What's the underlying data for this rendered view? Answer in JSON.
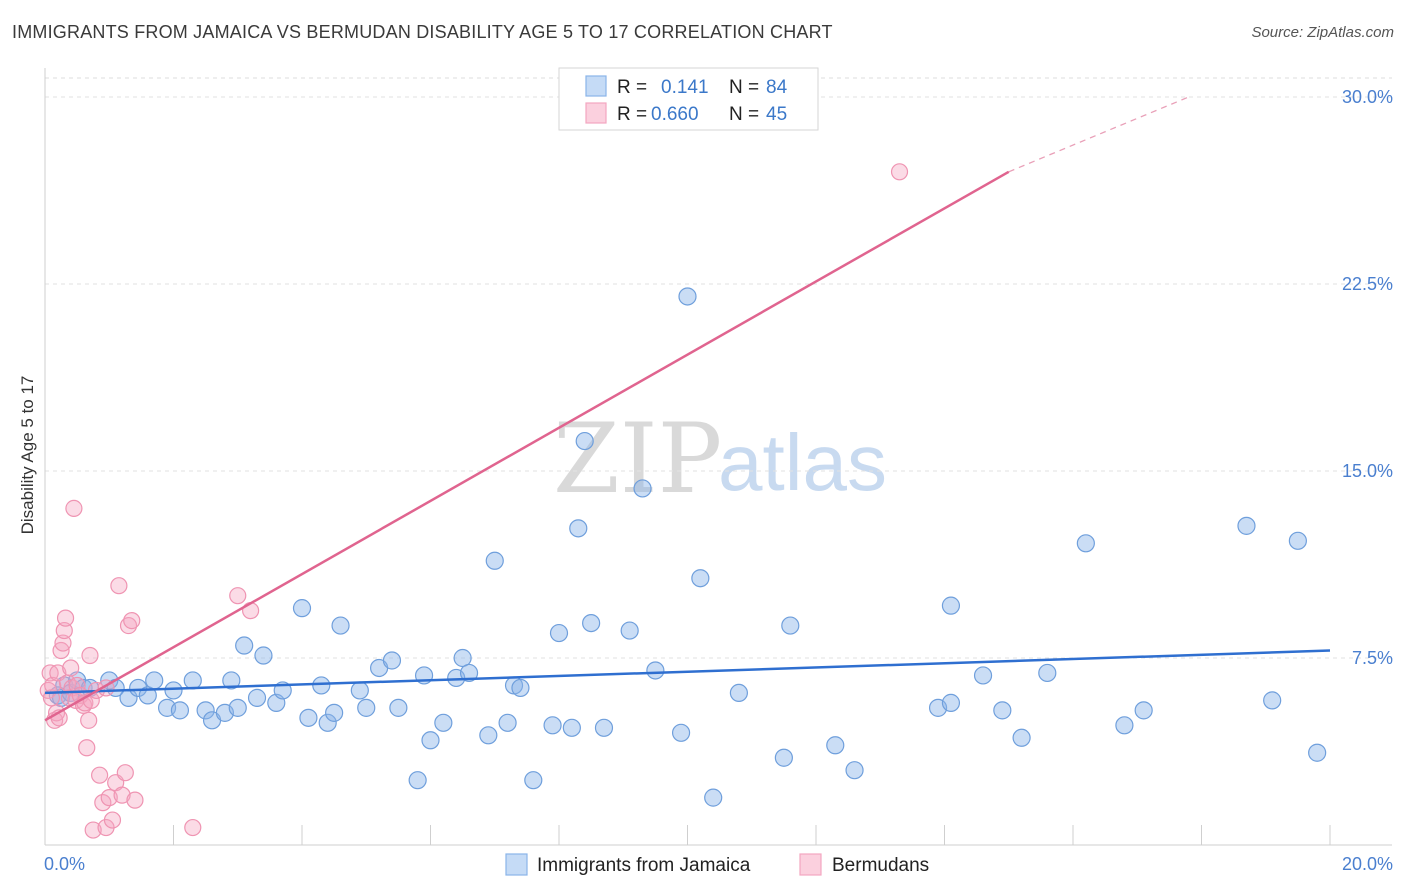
{
  "title": "IMMIGRANTS FROM JAMAICA VS BERMUDAN DISABILITY AGE 5 TO 17 CORRELATION CHART",
  "source": "Source: ZipAtlas.com",
  "watermark": {
    "zip": "ZIP",
    "atlas": "atlas"
  },
  "legend": {
    "rows": [
      {
        "r_label": "R =",
        "r_value": "0.141",
        "n_label": "N =",
        "n_value": "84"
      },
      {
        "r_label": "R =",
        "r_value": "0.660",
        "n_label": "N =",
        "n_value": "45"
      }
    ]
  },
  "bottom_legend": [
    "Immigrants from Jamaica",
    "Bermudans"
  ],
  "chart_data": {
    "type": "scatter",
    "title": "IMMIGRANTS FROM JAMAICA VS BERMUDAN DISABILITY AGE 5 TO 17 CORRELATION CHART",
    "xlabel": "",
    "ylabel": "Disability Age 5 to 17",
    "xlim": [
      0,
      20
    ],
    "ylim": [
      0,
      30
    ],
    "x_tick_labels": [
      "0.0%",
      "20.0%"
    ],
    "y_ticks": [
      7.5,
      15.0,
      22.5,
      30.0
    ],
    "y_tick_labels": [
      "7.5%",
      "15.0%",
      "22.5%",
      "30.0%"
    ],
    "grid": true,
    "legend_position": "top-center",
    "colors": {
      "jamaica": "#8ab4e8",
      "jamaica_line": "#2f6fd0",
      "bermuda": "#f4a6c0",
      "bermuda_line": "#e0648f"
    },
    "series": [
      {
        "name": "Immigrants from Jamaica",
        "color": "#8ab4e8",
        "trend": {
          "x": [
            0.0,
            20.0
          ],
          "y": [
            6.1,
            7.8
          ]
        },
        "points": [
          [
            0.2,
            6.0
          ],
          [
            0.25,
            5.9
          ],
          [
            0.3,
            6.4
          ],
          [
            0.4,
            6.1
          ],
          [
            0.5,
            6.6
          ],
          [
            0.6,
            6.3
          ],
          [
            0.7,
            6.3
          ],
          [
            1.0,
            6.6
          ],
          [
            1.1,
            6.3
          ],
          [
            1.3,
            5.9
          ],
          [
            1.45,
            6.3
          ],
          [
            1.6,
            6.0
          ],
          [
            1.7,
            6.6
          ],
          [
            1.9,
            5.5
          ],
          [
            2.0,
            6.2
          ],
          [
            2.1,
            5.4
          ],
          [
            2.3,
            6.6
          ],
          [
            2.5,
            5.4
          ],
          [
            2.6,
            5.0
          ],
          [
            2.8,
            5.3
          ],
          [
            2.9,
            6.6
          ],
          [
            3.0,
            5.5
          ],
          [
            3.1,
            8.0
          ],
          [
            3.3,
            5.9
          ],
          [
            3.4,
            7.6
          ],
          [
            3.6,
            5.7
          ],
          [
            3.7,
            6.2
          ],
          [
            4.0,
            9.5
          ],
          [
            4.1,
            5.1
          ],
          [
            4.3,
            6.4
          ],
          [
            4.4,
            4.9
          ],
          [
            4.5,
            5.3
          ],
          [
            4.6,
            8.8
          ],
          [
            4.9,
            6.2
          ],
          [
            5.0,
            5.5
          ],
          [
            5.2,
            7.1
          ],
          [
            5.4,
            7.4
          ],
          [
            5.5,
            5.5
          ],
          [
            5.8,
            2.6
          ],
          [
            5.9,
            6.8
          ],
          [
            6.0,
            4.2
          ],
          [
            6.2,
            4.9
          ],
          [
            6.4,
            6.7
          ],
          [
            6.5,
            7.5
          ],
          [
            6.6,
            6.9
          ],
          [
            6.9,
            4.4
          ],
          [
            7.0,
            11.4
          ],
          [
            7.2,
            4.9
          ],
          [
            7.3,
            6.4
          ],
          [
            7.4,
            6.3
          ],
          [
            7.6,
            2.6
          ],
          [
            7.9,
            4.8
          ],
          [
            8.0,
            8.5
          ],
          [
            8.2,
            4.7
          ],
          [
            8.3,
            12.7
          ],
          [
            8.4,
            16.2
          ],
          [
            8.5,
            8.9
          ],
          [
            8.7,
            4.7
          ],
          [
            9.1,
            8.6
          ],
          [
            9.3,
            14.3
          ],
          [
            9.5,
            7.0
          ],
          [
            9.9,
            4.5
          ],
          [
            10.0,
            22.0
          ],
          [
            10.2,
            10.7
          ],
          [
            10.4,
            1.9
          ],
          [
            10.8,
            6.1
          ],
          [
            11.5,
            3.5
          ],
          [
            11.6,
            8.8
          ],
          [
            12.3,
            4.0
          ],
          [
            12.6,
            3.0
          ],
          [
            13.9,
            5.5
          ],
          [
            14.1,
            5.7
          ],
          [
            14.1,
            9.6
          ],
          [
            14.6,
            6.8
          ],
          [
            14.9,
            5.4
          ],
          [
            15.2,
            4.3
          ],
          [
            15.6,
            6.9
          ],
          [
            16.2,
            12.1
          ],
          [
            16.8,
            4.8
          ],
          [
            17.1,
            5.4
          ],
          [
            18.7,
            12.8
          ],
          [
            19.1,
            5.8
          ],
          [
            19.5,
            12.2
          ],
          [
            19.8,
            3.7
          ]
        ]
      },
      {
        "name": "Bermudans",
        "color": "#f4a6c0",
        "trend": {
          "x": [
            0.0,
            15.0
          ],
          "y": [
            5.0,
            27.0
          ]
        },
        "trend_extension": {
          "x": [
            15.0,
            17.8
          ],
          "y": [
            27.0,
            30.0
          ]
        },
        "points": [
          [
            0.05,
            6.2
          ],
          [
            0.08,
            6.9
          ],
          [
            0.1,
            5.9
          ],
          [
            0.12,
            6.4
          ],
          [
            0.15,
            5.0
          ],
          [
            0.18,
            5.3
          ],
          [
            0.2,
            6.9
          ],
          [
            0.22,
            5.1
          ],
          [
            0.25,
            7.8
          ],
          [
            0.28,
            8.1
          ],
          [
            0.3,
            8.6
          ],
          [
            0.32,
            9.1
          ],
          [
            0.35,
            6.5
          ],
          [
            0.38,
            5.9
          ],
          [
            0.4,
            7.1
          ],
          [
            0.42,
            6.3
          ],
          [
            0.45,
            13.5
          ],
          [
            0.48,
            5.8
          ],
          [
            0.5,
            6.4
          ],
          [
            0.55,
            6.0
          ],
          [
            0.6,
            5.6
          ],
          [
            0.62,
            5.7
          ],
          [
            0.65,
            3.9
          ],
          [
            0.68,
            5.0
          ],
          [
            0.7,
            7.6
          ],
          [
            0.72,
            5.8
          ],
          [
            0.75,
            0.6
          ],
          [
            0.8,
            6.2
          ],
          [
            0.85,
            2.8
          ],
          [
            0.9,
            1.7
          ],
          [
            0.95,
            0.7
          ],
          [
            1.0,
            1.9
          ],
          [
            1.05,
            1.0
          ],
          [
            1.1,
            2.5
          ],
          [
            1.15,
            10.4
          ],
          [
            1.2,
            2.0
          ],
          [
            1.25,
            2.9
          ],
          [
            1.3,
            8.8
          ],
          [
            1.35,
            9.0
          ],
          [
            1.4,
            1.8
          ],
          [
            2.3,
            0.7
          ],
          [
            3.0,
            10.0
          ],
          [
            3.2,
            9.4
          ],
          [
            13.3,
            27.0
          ],
          [
            0.95,
            6.3
          ]
        ]
      }
    ]
  }
}
